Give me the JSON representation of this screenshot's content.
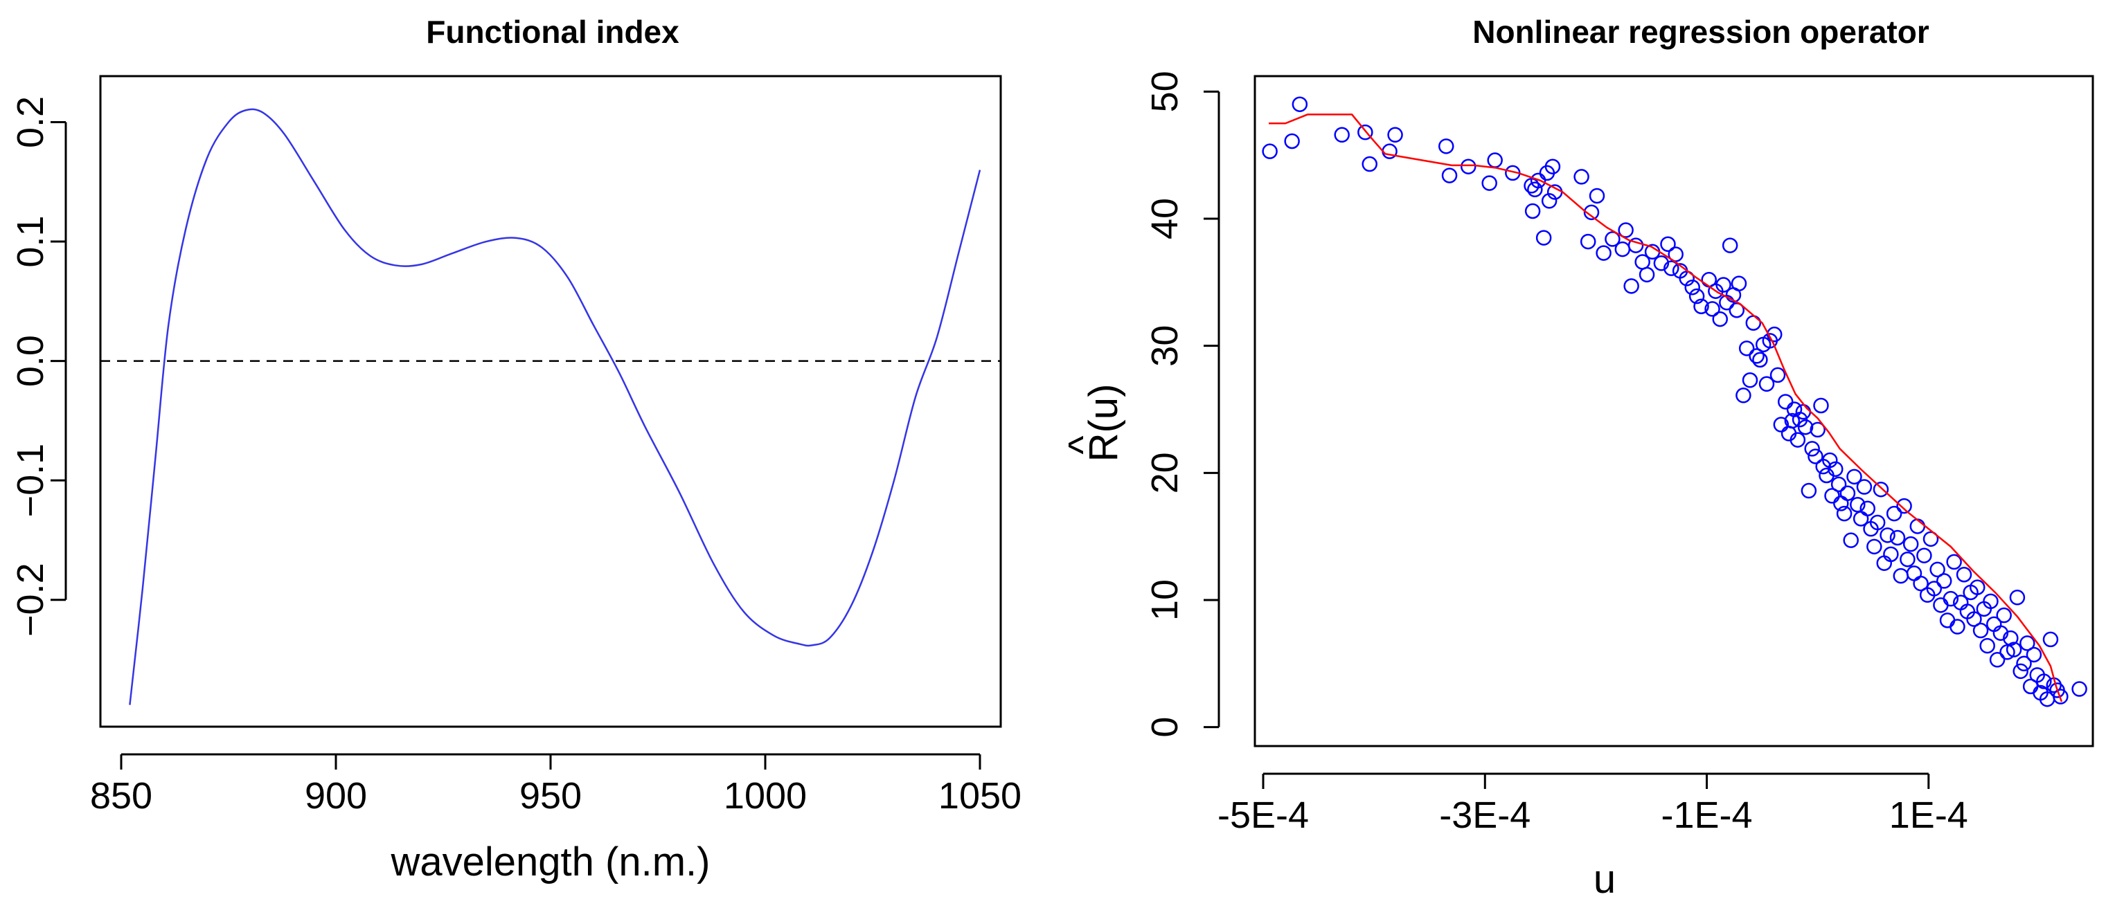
{
  "colors": {
    "curve": "#3535e6",
    "points": "#0000ff",
    "fit": "#ff0000",
    "axis": "#000000",
    "zero_line": "#000000"
  },
  "chart_data": [
    {
      "type": "line",
      "title": "Functional index",
      "xlabel": "wavelength (n.m.)",
      "ylabel": "",
      "xlim": [
        850,
        1050
      ],
      "ylim": [
        -0.29,
        0.22
      ],
      "xticks": [
        850,
        900,
        950,
        1000,
        1050
      ],
      "xtick_labels": [
        "850",
        "900",
        "950",
        "1000",
        "1050"
      ],
      "yticks": [
        -0.2,
        -0.1,
        0.0,
        0.1,
        0.2
      ],
      "ytick_labels": [
        "−0.2",
        "−0.1",
        "0.0",
        "0.1",
        "0.2"
      ],
      "reference_line": {
        "y": 0,
        "style": "dashed"
      },
      "series": [
        {
          "name": "functional index",
          "x": [
            852,
            855,
            858,
            861,
            865,
            870,
            875,
            879,
            883,
            888,
            895,
            902,
            908,
            914,
            920,
            927,
            935,
            942,
            948,
            954,
            960,
            966,
            972,
            980,
            988,
            995,
            1002,
            1008,
            1011,
            1015,
            1020,
            1025,
            1030,
            1035,
            1040,
            1045,
            1050
          ],
          "y": [
            -0.288,
            -0.19,
            -0.08,
            0.03,
            0.11,
            0.17,
            0.2,
            0.21,
            0.208,
            0.19,
            0.15,
            0.11,
            0.088,
            0.08,
            0.081,
            0.09,
            0.1,
            0.103,
            0.095,
            0.07,
            0.03,
            -0.01,
            -0.055,
            -0.11,
            -0.17,
            -0.21,
            -0.23,
            -0.237,
            -0.238,
            -0.232,
            -0.205,
            -0.16,
            -0.1,
            -0.03,
            0.02,
            0.09,
            0.16
          ]
        }
      ]
    },
    {
      "type": "scatter",
      "title": "Nonlinear regression operator",
      "xlabel": "u",
      "ylabel": "R(u)",
      "ylabel_accent": "^",
      "xlim": [
        -0.000505,
        0.000245
      ],
      "ylim": [
        -1,
        51
      ],
      "xticks": [
        -0.0005,
        -0.0003,
        -0.0001,
        0.0001
      ],
      "xtick_labels": [
        "-5E-4",
        "-3E-4",
        "-1E-4",
        "1E-4"
      ],
      "yticks": [
        0,
        10,
        20,
        30,
        40,
        50
      ],
      "ytick_labels": [
        "0",
        "10",
        "20",
        "30",
        "40",
        "50"
      ],
      "series": [
        {
          "name": "observations",
          "x": [
            -0.000494,
            -0.000474,
            -0.000467,
            -0.000429,
            -0.000408,
            -0.000404,
            -0.000386,
            -0.000381,
            -0.000335,
            -0.000332,
            -0.000315,
            -0.000296,
            -0.000291,
            -0.000275,
            -0.000258,
            -0.000257,
            -0.000255,
            -0.000252,
            -0.000247,
            -0.000244,
            -0.000242,
            -0.000239,
            -0.000237,
            -0.000213,
            -0.000207,
            -0.000204,
            -0.000199,
            -0.000193,
            -0.000185,
            -0.000176,
            -0.000173,
            -0.000168,
            -0.000164,
            -0.000158,
            -0.000154,
            -0.000149,
            -0.000141,
            -0.000135,
            -0.000132,
            -0.000128,
            -0.000124,
            -0.000118,
            -0.000113,
            -0.000109,
            -0.000105,
            -9.8e-05,
            -9.5e-05,
            -9.2e-05,
            -8.8e-05,
            -8.5e-05,
            -8.2e-05,
            -7.9e-05,
            -7.6e-05,
            -7.3e-05,
            -7.1e-05,
            -6.7e-05,
            -6.4e-05,
            -6.1e-05,
            -5.8e-05,
            -5.5e-05,
            -5.2e-05,
            -4.9e-05,
            -4.6e-05,
            -4.3e-05,
            -3.9e-05,
            -3.6e-05,
            -3.3e-05,
            -2.9e-05,
            -2.6e-05,
            -2.3e-05,
            -2.1e-05,
            -1.8e-05,
            -1.6e-05,
            -1.3e-05,
            -1.1e-05,
            -8e-06,
            -5e-06,
            -2e-06,
            0.0,
            3e-06,
            5e-06,
            8e-06,
            1.1e-05,
            1.3e-05,
            1.6e-05,
            1.9e-05,
            2.1e-05,
            2.4e-05,
            2.7e-05,
            3e-05,
            3.3e-05,
            3.6e-05,
            3.9e-05,
            4.2e-05,
            4.5e-05,
            4.8e-05,
            5.1e-05,
            5.4e-05,
            5.7e-05,
            6e-05,
            6.3e-05,
            6.6e-05,
            6.9e-05,
            7.2e-05,
            7.5e-05,
            7.8e-05,
            8.1e-05,
            8.4e-05,
            8.7e-05,
            9e-05,
            9.3e-05,
            9.6e-05,
            9.9e-05,
            0.000102,
            0.000105,
            0.000108,
            0.000111,
            0.000114,
            0.000117,
            0.00012,
            0.000123,
            0.000126,
            0.000129,
            0.000132,
            0.000135,
            0.000138,
            0.000141,
            0.000144,
            0.000147,
            0.00015,
            0.000153,
            0.000156,
            0.000159,
            0.000162,
            0.000165,
            0.000168,
            0.000171,
            0.000174,
            0.000177,
            0.00018,
            0.000183,
            0.000186,
            0.000189,
            0.000192,
            0.000195,
            0.000198,
            0.000201,
            0.000204,
            0.000207,
            0.00021,
            0.000213,
            0.000216,
            0.000219,
            0.000236
          ],
          "y": [
            45.3,
            46.1,
            49.0,
            46.6,
            46.8,
            44.3,
            45.3,
            46.6,
            45.7,
            43.4,
            44.1,
            42.8,
            44.6,
            43.6,
            42.6,
            40.6,
            42.3,
            43.0,
            38.5,
            43.6,
            41.4,
            44.1,
            42.1,
            43.3,
            38.2,
            40.5,
            41.8,
            37.3,
            38.4,
            37.6,
            39.1,
            34.7,
            37.9,
            36.6,
            35.6,
            37.4,
            36.5,
            38.0,
            36.1,
            37.2,
            35.9,
            35.3,
            34.6,
            33.9,
            33.1,
            35.2,
            32.9,
            34.3,
            32.1,
            34.8,
            33.4,
            37.9,
            34.0,
            32.8,
            34.9,
            26.1,
            29.8,
            27.3,
            31.8,
            29.2,
            28.9,
            30.1,
            27.0,
            30.4,
            30.9,
            27.7,
            23.8,
            25.6,
            23.1,
            24.1,
            25.0,
            22.6,
            24.2,
            24.8,
            23.6,
            18.6,
            21.9,
            21.3,
            23.4,
            25.3,
            20.5,
            19.8,
            21.0,
            18.2,
            20.3,
            19.1,
            17.6,
            16.8,
            18.4,
            14.7,
            19.7,
            17.5,
            16.4,
            18.9,
            17.2,
            15.6,
            14.2,
            16.1,
            18.7,
            12.9,
            15.1,
            13.6,
            16.8,
            14.9,
            11.9,
            17.4,
            13.2,
            14.4,
            12.1,
            15.8,
            11.3,
            13.5,
            10.4,
            14.8,
            10.9,
            12.4,
            9.6,
            11.5,
            8.4,
            10.1,
            13.0,
            7.9,
            9.8,
            12.0,
            9.1,
            10.6,
            8.5,
            11.0,
            7.6,
            9.3,
            6.4,
            9.9,
            8.1,
            5.3,
            7.4,
            8.8,
            5.9,
            7.0,
            6.1,
            10.2,
            4.4,
            5.0,
            6.6,
            3.2,
            5.7,
            4.1,
            2.7,
            3.6,
            2.2,
            6.9,
            3.3,
            2.9,
            2.4,
            3.0
          ]
        },
        {
          "name": "fitted regression",
          "x": [
            -0.000495,
            -0.00048,
            -0.00046,
            -0.00042,
            -0.000404,
            -0.00039,
            -0.00037,
            -0.00035,
            -0.00033,
            -0.00031,
            -0.00029,
            -0.00027,
            -0.00025,
            -0.00023,
            -0.00021,
            -0.00019,
            -0.00017,
            -0.00015,
            -0.00013,
            -0.00011,
            -9e-05,
            -7e-05,
            -5e-05,
            -4e-05,
            -3e-05,
            -2e-05,
            -1e-05,
            0.0,
            1e-05,
            2e-05,
            4e-05,
            6e-05,
            8e-05,
            0.0001,
            0.00012,
            0.00014,
            0.00016,
            0.00018,
            0.0002,
            0.00021,
            0.000215,
            0.00022
          ],
          "y": [
            47.5,
            47.5,
            48.2,
            48.2,
            46.5,
            45.1,
            44.8,
            44.5,
            44.2,
            44.2,
            44.0,
            43.6,
            43.0,
            42.1,
            40.6,
            39.3,
            38.3,
            37.8,
            36.7,
            35.4,
            34.2,
            33.3,
            31.8,
            30.2,
            28.1,
            26.2,
            25.1,
            24.3,
            23.2,
            21.9,
            20.2,
            18.6,
            17.0,
            15.6,
            14.2,
            12.3,
            10.6,
            8.7,
            6.4,
            4.8,
            3.2,
            2.0
          ]
        }
      ]
    }
  ]
}
